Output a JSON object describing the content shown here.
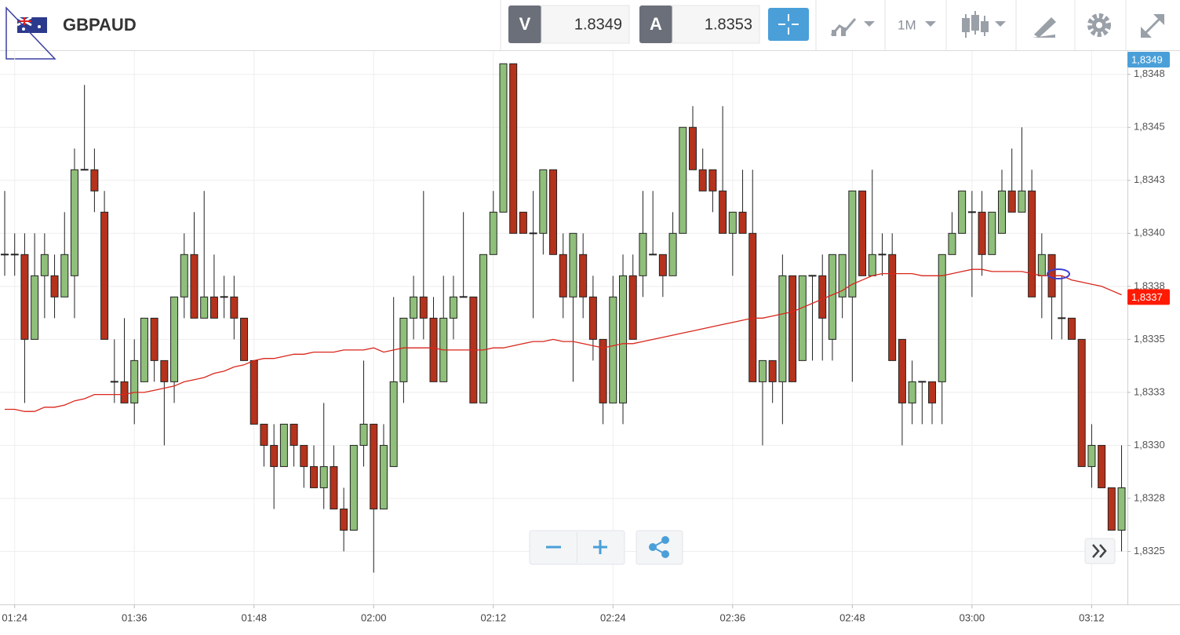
{
  "header": {
    "symbol": "GBPAUD",
    "bid_label": "V",
    "bid": 1.8349,
    "ask_label": "A",
    "ask": 1.8353,
    "timeframe": "1M"
  },
  "chart_data": {
    "type": "candlestick",
    "categories": [
      null,
      "01:24",
      null,
      null,
      null,
      null,
      null,
      null,
      null,
      null,
      null,
      null,
      null,
      "01:36",
      null,
      null,
      null,
      null,
      null,
      null,
      null,
      null,
      null,
      null,
      null,
      "01:48",
      null,
      null,
      null,
      null,
      null,
      null,
      null,
      null,
      null,
      null,
      null,
      "02:00",
      null,
      null,
      null,
      null,
      null,
      null,
      null,
      null,
      null,
      null,
      null,
      "02:12",
      null,
      null,
      null,
      null,
      null,
      null,
      null,
      null,
      null,
      null,
      null,
      "02:24",
      null,
      null,
      null,
      null,
      null,
      null,
      null,
      null,
      null,
      null,
      null,
      "02:36",
      null,
      null,
      null,
      null,
      null,
      null,
      null,
      null,
      null,
      null,
      null,
      "02:48",
      null,
      null,
      null,
      null,
      null,
      null,
      null,
      null,
      null,
      null,
      null,
      "03:00",
      null,
      null,
      null,
      null,
      null,
      null,
      null,
      null,
      null,
      null,
      null,
      "03:12",
      null,
      null,
      null
    ],
    "open": [
      1.8339,
      1.8339,
      1.8339,
      1.8335,
      1.8338,
      1.8338,
      1.8337,
      1.8338,
      1.8343,
      1.8343,
      1.8341,
      1.8333,
      1.8333,
      1.8332,
      1.8333,
      1.8336,
      1.8334,
      1.8333,
      1.8337,
      1.8339,
      1.8336,
      1.8337,
      1.8337,
      1.8337,
      1.8336,
      1.8334,
      1.8331,
      1.833,
      1.8329,
      1.8331,
      1.833,
      1.8329,
      1.8328,
      1.8329,
      1.8327,
      1.8326,
      1.833,
      1.8331,
      1.8327,
      1.8329,
      1.8333,
      1.8336,
      1.8337,
      1.8336,
      1.8333,
      1.8336,
      1.8337,
      1.8337,
      1.8332,
      1.8339,
      1.8341,
      1.8348,
      1.8341,
      1.834,
      1.834,
      1.8343,
      1.8339,
      1.8337,
      1.8339,
      1.8337,
      1.8335,
      1.8332,
      1.8332,
      1.8338,
      1.8338,
      1.8339,
      1.8339,
      1.8338,
      1.834,
      1.8345,
      1.8343,
      1.8343,
      1.8342,
      1.834,
      1.8341,
      1.834,
      1.8333,
      1.8334,
      1.8333,
      1.8338,
      1.8334,
      1.8338,
      1.8338,
      1.8335,
      1.8337,
      1.8337,
      1.8342,
      1.8338,
      1.8339,
      1.8339,
      1.8335,
      1.8332,
      1.8333,
      1.8333,
      1.8333,
      1.8339,
      1.834,
      1.8341,
      1.8341,
      1.8339,
      1.834,
      1.8342,
      1.8341,
      1.8342,
      1.8338,
      1.8339,
      1.8336,
      1.8336,
      1.8335,
      1.8329,
      1.833,
      1.8328,
      1.8326
    ],
    "high": [
      1.8342,
      1.834,
      1.834,
      1.834,
      1.834,
      1.8339,
      1.8341,
      1.8344,
      1.8347,
      1.8344,
      1.8342,
      1.8335,
      1.8336,
      1.8335,
      1.8336,
      1.8336,
      1.8334,
      1.8337,
      1.834,
      1.8341,
      1.8342,
      1.8339,
      1.8338,
      1.8338,
      1.8336,
      1.8334,
      1.8331,
      1.8331,
      1.8331,
      1.8331,
      1.833,
      1.833,
      1.8332,
      1.833,
      1.8328,
      1.833,
      1.8334,
      1.8331,
      1.8331,
      1.8337,
      1.8336,
      1.8338,
      1.8342,
      1.8337,
      1.8338,
      1.8338,
      1.8341,
      1.8337,
      1.8339,
      1.8342,
      1.8348,
      1.8348,
      1.8341,
      1.8342,
      1.8343,
      1.8343,
      1.834,
      1.834,
      1.834,
      1.8338,
      1.8335,
      1.8338,
      1.8339,
      1.8339,
      1.8342,
      1.8342,
      1.8339,
      1.8341,
      1.8345,
      1.8346,
      1.8344,
      1.8343,
      1.8346,
      1.8341,
      1.8343,
      1.8343,
      1.8334,
      1.8334,
      1.8339,
      1.8338,
      1.8338,
      1.8338,
      1.8339,
      1.8339,
      1.8339,
      1.8342,
      1.8342,
      1.8343,
      1.834,
      1.834,
      1.8335,
      1.8334,
      1.8333,
      1.8333,
      1.8339,
      1.8341,
      1.8342,
      1.8342,
      1.8342,
      1.8341,
      1.8343,
      1.8344,
      1.8345,
      1.8343,
      1.834,
      1.8339,
      1.8338,
      1.8336,
      1.8335,
      1.8331,
      1.833,
      1.8328,
      1.833
    ],
    "low": [
      1.8338,
      1.8338,
      1.8332,
      1.8335,
      1.8336,
      1.8336,
      1.8337,
      1.8336,
      1.8343,
      1.8341,
      1.8335,
      1.8332,
      1.8332,
      1.8331,
      1.8333,
      1.8333,
      1.833,
      1.8332,
      1.8336,
      1.8336,
      1.8336,
      1.8336,
      1.8336,
      1.8335,
      1.8334,
      1.8331,
      1.8329,
      1.8327,
      1.8329,
      1.8329,
      1.8328,
      1.8328,
      1.8327,
      1.8327,
      1.8325,
      1.8326,
      1.8329,
      1.8324,
      1.8327,
      1.8329,
      1.8332,
      1.8335,
      1.8335,
      1.8333,
      1.8333,
      1.8335,
      1.8337,
      1.8332,
      1.8332,
      1.8339,
      1.8341,
      1.834,
      1.834,
      1.8336,
      1.8339,
      1.8339,
      1.8336,
      1.8333,
      1.8336,
      1.8334,
      1.8331,
      1.8332,
      1.8331,
      1.8335,
      1.8337,
      1.8339,
      1.8337,
      1.8338,
      1.834,
      1.8343,
      1.8342,
      1.8341,
      1.834,
      1.8338,
      1.834,
      1.8333,
      1.833,
      1.8332,
      1.8331,
      1.8333,
      1.8334,
      1.8334,
      1.8334,
      1.8334,
      1.8336,
      1.8333,
      1.8338,
      1.8338,
      1.8338,
      1.8334,
      1.833,
      1.8331,
      1.8331,
      1.8331,
      1.8331,
      1.8339,
      1.834,
      1.8337,
      1.8338,
      1.8339,
      1.834,
      1.8341,
      1.8341,
      1.8337,
      1.8336,
      1.8335,
      1.8335,
      1.8335,
      1.8329,
      1.8328,
      1.8328,
      1.8326,
      1.8325
    ],
    "close": [
      1.8339,
      1.8339,
      1.8335,
      1.8338,
      1.8339,
      1.8337,
      1.8339,
      1.8343,
      1.8343,
      1.8342,
      1.8335,
      1.8333,
      1.8332,
      1.8334,
      1.8336,
      1.8334,
      1.8333,
      1.8337,
      1.8339,
      1.8336,
      1.8337,
      1.8336,
      1.8337,
      1.8336,
      1.8334,
      1.8331,
      1.833,
      1.8329,
      1.8331,
      1.833,
      1.8329,
      1.8328,
      1.8329,
      1.8327,
      1.8326,
      1.833,
      1.8331,
      1.8327,
      1.833,
      1.8333,
      1.8336,
      1.8337,
      1.8336,
      1.8333,
      1.8336,
      1.8337,
      1.8337,
      1.8332,
      1.8339,
      1.8341,
      1.8348,
      1.834,
      1.834,
      1.834,
      1.8343,
      1.8339,
      1.8337,
      1.834,
      1.8337,
      1.8335,
      1.8332,
      1.8337,
      1.8338,
      1.8335,
      1.834,
      1.8339,
      1.8338,
      1.834,
      1.8345,
      1.8343,
      1.8342,
      1.8342,
      1.834,
      1.8341,
      1.834,
      1.8333,
      1.8334,
      1.8333,
      1.8338,
      1.8333,
      1.8338,
      1.8338,
      1.8336,
      1.8339,
      1.8339,
      1.8342,
      1.8338,
      1.8339,
      1.8339,
      1.8334,
      1.8332,
      1.8333,
      1.8333,
      1.8332,
      1.8339,
      1.834,
      1.8342,
      1.8341,
      1.8339,
      1.8341,
      1.8342,
      1.8341,
      1.8342,
      1.8337,
      1.8339,
      1.8337,
      1.8336,
      1.8335,
      1.8329,
      1.833,
      1.8328,
      1.8326,
      1.8328
    ],
    "up_color": "#8fbf7a",
    "down_color": "#b5321c",
    "moving_average": {
      "color": "#d9261c",
      "values": [
        1.83317,
        1.83317,
        1.83316,
        1.83316,
        1.83318,
        1.83318,
        1.83319,
        1.83321,
        1.83322,
        1.83324,
        1.83324,
        1.83324,
        1.83324,
        1.83325,
        1.83325,
        1.83326,
        1.83327,
        1.83328,
        1.8333,
        1.83331,
        1.83332,
        1.83334,
        1.83335,
        1.83337,
        1.83338,
        1.8334,
        1.83341,
        1.83341,
        1.83342,
        1.83343,
        1.83343,
        1.83344,
        1.83344,
        1.83344,
        1.83345,
        1.83345,
        1.83345,
        1.83346,
        1.83344,
        1.83345,
        1.83346,
        1.83346,
        1.83346,
        1.83346,
        1.83345,
        1.83345,
        1.83345,
        1.83345,
        1.83345,
        1.83346,
        1.83346,
        1.83347,
        1.83348,
        1.83349,
        1.83349,
        1.8335,
        1.83349,
        1.83349,
        1.83348,
        1.83347,
        1.83346,
        1.83347,
        1.83348,
        1.83348,
        1.83349,
        1.8335,
        1.83351,
        1.83352,
        1.83353,
        1.83354,
        1.83355,
        1.83356,
        1.83357,
        1.83358,
        1.83359,
        1.8336,
        1.8336,
        1.83361,
        1.83362,
        1.83363,
        1.83365,
        1.83367,
        1.83369,
        1.83371,
        1.83373,
        1.83376,
        1.83378,
        1.8338,
        1.83381,
        1.83381,
        1.83381,
        1.83381,
        1.8338,
        1.8338,
        1.8338,
        1.83381,
        1.83382,
        1.83383,
        1.83383,
        1.83382,
        1.83382,
        1.83382,
        1.83382,
        1.83381,
        1.8338,
        1.8338,
        1.8338,
        1.83378,
        1.83377,
        1.83376,
        1.83375,
        1.83373,
        1.83371
      ]
    },
    "ylim": [
      1.83225,
      1.83486
    ],
    "yticks": [
      {
        "value": 1.83475,
        "label": "1,8348"
      },
      {
        "value": 1.8345,
        "label": "1,8345"
      },
      {
        "value": 1.83425,
        "label": "1,8343"
      },
      {
        "value": 1.834,
        "label": "1,8340"
      },
      {
        "value": 1.83375,
        "label": "1,8338"
      },
      {
        "value": 1.8335,
        "label": "1,8335"
      },
      {
        "value": 1.83325,
        "label": "1,8333"
      },
      {
        "value": 1.833,
        "label": "1,8330"
      },
      {
        "value": 1.83275,
        "label": "1,8328"
      },
      {
        "value": 1.8325,
        "label": "1,8325"
      }
    ],
    "grid": true,
    "price_badges": [
      {
        "value": 1.8349,
        "label": "1,8349",
        "color": "#4a9fd8"
      },
      {
        "value": 1.8337,
        "label": "1,8337",
        "color": "#ff1a00"
      }
    ]
  }
}
